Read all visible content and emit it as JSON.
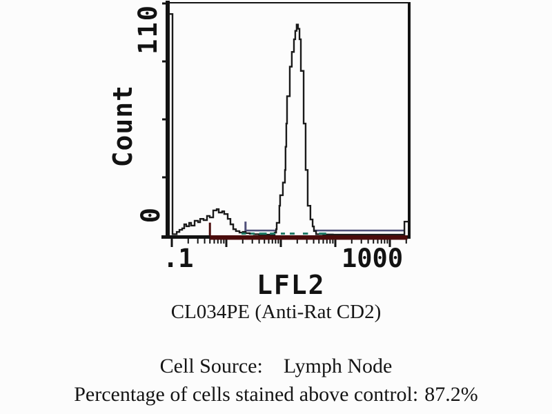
{
  "figure": {
    "antibody_caption": "CL034PE (Anti-Rat CD2)",
    "cell_source_label": "Cell Source:",
    "cell_source_value": "Lymph Node",
    "percentage_label": "Percentage of cells stained above control:",
    "percentage_value": "87.2%"
  },
  "chart_data": {
    "type": "line",
    "subtype": "flow-cytometry-histogram",
    "title": "",
    "xlabel": "LFL2",
    "ylabel": "Count",
    "x_scale": "log",
    "x_range": [
      0.089,
      2100
    ],
    "y_range": [
      0,
      115
    ],
    "grid": false,
    "legend": "none",
    "x_decades": [
      0.1,
      1,
      10,
      100,
      1000
    ],
    "x_ticks_labeled": [
      {
        "value": 0.1,
        "label": ".1"
      },
      {
        "value": 1000,
        "label": "1000"
      }
    ],
    "y_ticks": [
      0,
      27.5,
      55,
      82.5,
      110
    ],
    "y_ticks_labeled": [
      {
        "value": 0,
        "label": "0"
      },
      {
        "value": 110,
        "label": "110"
      }
    ],
    "axis_color": "#121212",
    "series": [
      {
        "name": "events",
        "color": "#1a1a1a",
        "fill": "#fcfcfc",
        "points": [
          [
            0.094,
            105
          ],
          [
            0.102,
            105
          ],
          [
            0.103,
            0.5
          ],
          [
            0.112,
            0.5
          ],
          [
            0.123,
            1.6
          ],
          [
            0.138,
            2.6
          ],
          [
            0.155,
            3.3
          ],
          [
            0.169,
            5.2
          ],
          [
            0.184,
            4.3
          ],
          [
            0.208,
            5.9
          ],
          [
            0.226,
            4.6
          ],
          [
            0.262,
            6.9
          ],
          [
            0.303,
            6.2
          ],
          [
            0.331,
            7.8
          ],
          [
            0.382,
            7.2
          ],
          [
            0.442,
            9.2
          ],
          [
            0.497,
            8.5
          ],
          [
            0.575,
            11.8
          ],
          [
            0.665,
            12.4
          ],
          [
            0.726,
            10.8
          ],
          [
            0.839,
            11.4
          ],
          [
            0.915,
            10.1
          ],
          [
            1.06,
            7.8
          ],
          [
            1.19,
            5.2
          ],
          [
            1.34,
            2.9
          ],
          [
            1.5,
            2.0
          ],
          [
            1.74,
            1.3
          ],
          [
            2.01,
            1.6
          ],
          [
            2.26,
            1.0
          ],
          [
            2.69,
            0.7
          ],
          [
            3.2,
            0.5
          ],
          [
            4.0,
            0.4
          ],
          [
            5.0,
            0.3
          ],
          [
            6.3,
            0.3
          ],
          [
            7.7,
            1.3
          ],
          [
            8.2,
            2.9
          ],
          [
            8.4,
            5.9
          ],
          [
            9.4,
            14
          ],
          [
            9.7,
            19
          ],
          [
            10.9,
            25
          ],
          [
            11.9,
            31
          ],
          [
            12.2,
            42
          ],
          [
            12.6,
            53
          ],
          [
            13.0,
            66
          ],
          [
            14.6,
            80
          ],
          [
            15.9,
            87
          ],
          [
            17.4,
            93
          ],
          [
            18.4,
            97
          ],
          [
            19.5,
            100
          ],
          [
            20.7,
            98
          ],
          [
            22.0,
            93
          ],
          [
            23.3,
            78
          ],
          [
            26.2,
            53
          ],
          [
            28.5,
            31
          ],
          [
            31.1,
            14
          ],
          [
            34.9,
            7.5
          ],
          [
            38.3,
            4.2
          ],
          [
            40.5,
            2.0
          ],
          [
            44.3,
            0.5
          ],
          [
            60,
            0.4
          ],
          [
            90,
            0.3
          ],
          [
            150,
            0.3
          ],
          [
            300,
            0.3
          ],
          [
            600,
            0.3
          ],
          [
            1200,
            0.3
          ],
          [
            1600,
            0.3
          ],
          [
            1850,
            6.5
          ],
          [
            2070,
            6.5
          ]
        ]
      }
    ],
    "markers": [
      {
        "name": "baseline-marker-dark-red",
        "color": "#4a0c0c",
        "type": "solid-bar",
        "from_x": 0.5,
        "to_x": 2100,
        "at_count": 0,
        "tick_at_x": 0.5,
        "tick_height_count": 6
      },
      {
        "name": "gate-marker-slate-blue",
        "color": "#50507a",
        "type": "solid-line",
        "from_x": 2.25,
        "to_x": 2060,
        "at_count": 2.3,
        "tick_at_x": 2.25,
        "tick_height_count": 6.5
      },
      {
        "name": "gate-marker-teal-dashed",
        "color": "#1e7a66",
        "type": "dashed-line",
        "at_count": 0.8,
        "segments": [
          [
            1.9,
            2.3
          ],
          [
            2.8,
            3.3
          ],
          [
            4.0,
            5.5
          ],
          [
            6.3,
            7.9
          ],
          [
            10,
            11.9
          ],
          [
            14.6,
            17.9
          ],
          [
            25.4,
            31.5
          ],
          [
            50,
            68
          ]
        ]
      }
    ]
  }
}
